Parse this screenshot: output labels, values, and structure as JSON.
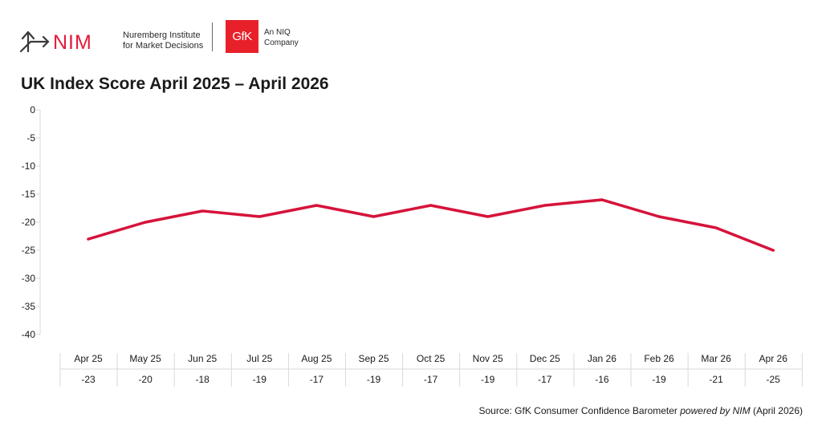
{
  "header": {
    "nim_wordmark": "NIM",
    "nim_line1": "Nuremberg Institute",
    "nim_line2": "for Market Decisions",
    "gfk_wordmark": "GfK",
    "gfk_line1": "An NIQ",
    "gfk_line2": "Company"
  },
  "colors": {
    "line": "#d6133a",
    "brand_red": "#e8202a",
    "nim_red": "#e31b3b",
    "grid": "#d9d9d9"
  },
  "chart_data": {
    "type": "line",
    "title": "UK Index Score April 2025 – April 2026",
    "categories": [
      "Apr 25",
      "May 25",
      "Jun 25",
      "Jul 25",
      "Aug 25",
      "Sep 25",
      "Oct 25",
      "Nov 25",
      "Dec 25",
      "Jan 26",
      "Feb 26",
      "Mar 26",
      "Apr 26"
    ],
    "series": [
      {
        "values": [
          -23,
          -20,
          -18,
          -19,
          -17,
          -19,
          -17,
          -19,
          -17,
          -16,
          -19,
          -21,
          -25
        ]
      }
    ],
    "value_labels": [
      "-23",
      "-20",
      "-18",
      "-19",
      "-17",
      "-19",
      "-17",
      "-19",
      "-17",
      "-16",
      "-19",
      "-21",
      "-25"
    ],
    "yticks": [
      "0",
      "-5",
      "-10",
      "-15",
      "-20",
      "-25",
      "-30",
      "-35",
      "-40"
    ],
    "ylim": [
      -40,
      0
    ],
    "grid": false,
    "data_table": true
  },
  "source": {
    "prefix": "Source: GfK Consumer Confidence Barometer ",
    "italic": "powered by NIM",
    "suffix": " (April 2026)"
  }
}
